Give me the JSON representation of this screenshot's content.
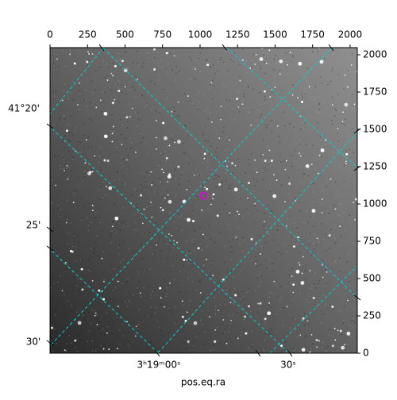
{
  "chart_data": {
    "type": "image",
    "xlabel": "pos.eq.ra",
    "xlim": [
      0,
      2048
    ],
    "xticks": [
      0,
      250,
      500,
      750,
      1000,
      1250,
      1500,
      1750,
      2000
    ],
    "ylim": [
      0,
      2048
    ],
    "yticks": [
      0,
      250,
      500,
      750,
      1000,
      1250,
      1500,
      1750,
      2000
    ],
    "dec_labels": [
      "41°20'",
      "25'",
      "30'"
    ],
    "ra_labels": [
      "3ʰ19ᵐ00ˢ",
      "30ˢ"
    ],
    "grid_color": "#00d0d0",
    "marker": {
      "x": 1022,
      "y": 1055,
      "color": "#e000e0"
    }
  }
}
